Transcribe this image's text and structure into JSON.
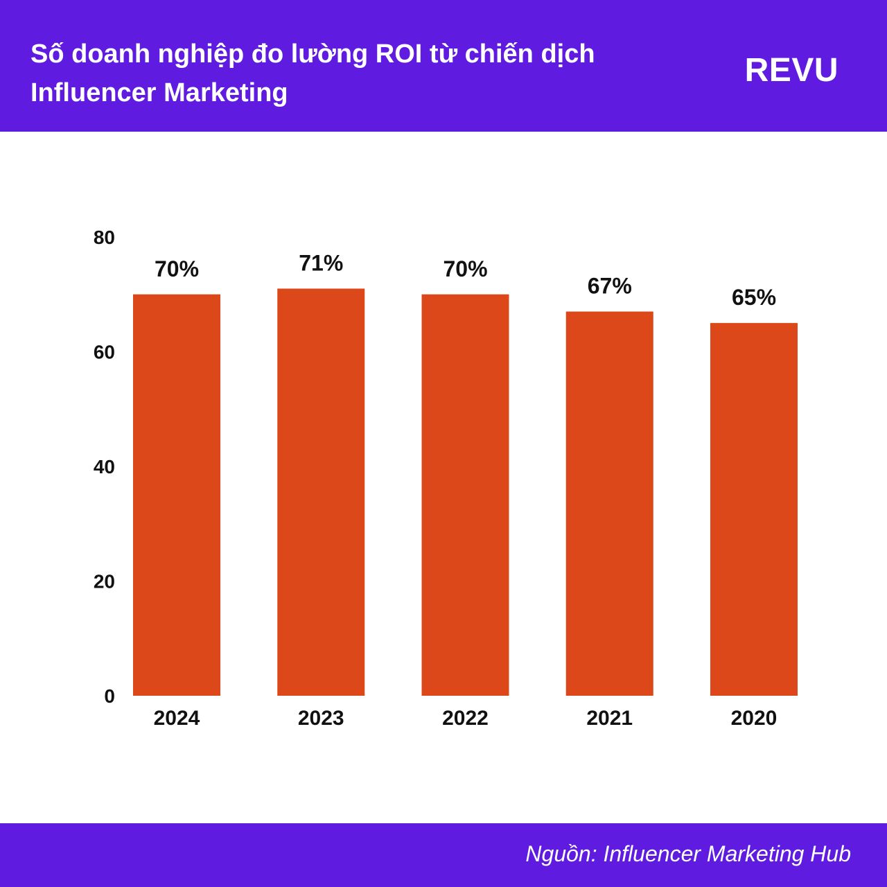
{
  "header": {
    "title": "Số doanh nghiệp đo lường ROI từ chiến dịch Influencer Marketing",
    "brand": "REVU"
  },
  "footer": {
    "source": "Nguồn: Influencer Marketing Hub"
  },
  "colors": {
    "header_bg": "#5f1bdf",
    "bar": "#dc4819",
    "text": "#111111"
  },
  "chart_data": {
    "type": "bar",
    "title": "Số doanh nghiệp đo lường ROI từ chiến dịch Influencer Marketing",
    "categories": [
      "2024",
      "2023",
      "2022",
      "2021",
      "2020"
    ],
    "values": [
      70,
      71,
      70,
      67,
      65
    ],
    "value_labels": [
      "70%",
      "71%",
      "70%",
      "67%",
      "65%"
    ],
    "yticks": [
      "0",
      "20",
      "40",
      "60",
      "80"
    ],
    "ylim": [
      0,
      80
    ],
    "grid": false,
    "legend": "none",
    "xlabel": "",
    "ylabel": ""
  }
}
